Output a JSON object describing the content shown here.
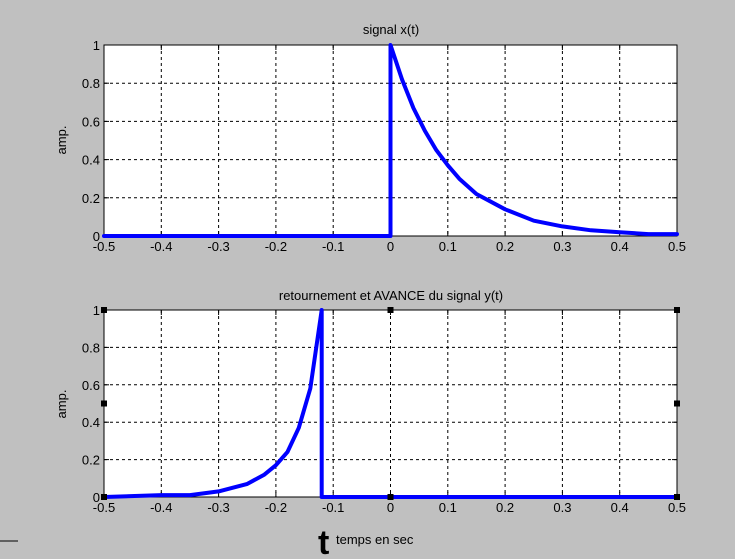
{
  "chart_data": [
    {
      "type": "line",
      "title": "signal x(t)",
      "xlabel": "",
      "ylabel": "amp.",
      "xlim": [
        -0.5,
        0.5
      ],
      "ylim": [
        0,
        1
      ],
      "xticks": [
        "-0.5",
        "-0.4",
        "-0.3",
        "-0.2",
        "-0.1",
        "0",
        "0.1",
        "0.2",
        "0.3",
        "0.4",
        "0.5"
      ],
      "yticks": [
        "0",
        "0.2",
        "0.4",
        "0.6",
        "0.8",
        "1"
      ],
      "grid": true,
      "series": [
        {
          "color": "#0000ff",
          "x": [
            -0.5,
            0.0,
            0.0,
            0.02,
            0.04,
            0.06,
            0.08,
            0.1,
            0.12,
            0.15,
            0.2,
            0.25,
            0.3,
            0.35,
            0.4,
            0.45,
            0.5
          ],
          "y": [
            0,
            0,
            1,
            0.82,
            0.67,
            0.55,
            0.45,
            0.37,
            0.3,
            0.22,
            0.14,
            0.08,
            0.05,
            0.03,
            0.02,
            0.01,
            0.01
          ]
        }
      ]
    },
    {
      "type": "line",
      "title": "retournement et AVANCE du signal y(t)",
      "xlabel": "temps en sec",
      "ylabel": "amp.",
      "xlim": [
        -0.5,
        0.5
      ],
      "ylim": [
        0,
        1
      ],
      "xticks": [
        "-0.5",
        "-0.4",
        "-0.3",
        "-0.2",
        "-0.1",
        "0",
        "0.1",
        "0.2",
        "0.3",
        "0.4",
        "0.5"
      ],
      "yticks": [
        "0",
        "0.2",
        "0.4",
        "0.6",
        "0.8",
        "1"
      ],
      "grid": true,
      "annotation": "t",
      "series": [
        {
          "color": "#0000ff",
          "x": [
            -0.5,
            -0.4,
            -0.35,
            -0.3,
            -0.25,
            -0.22,
            -0.2,
            -0.18,
            -0.16,
            -0.14,
            -0.12,
            -0.12,
            0.5
          ],
          "y": [
            0,
            0.01,
            0.01,
            0.03,
            0.07,
            0.12,
            0.17,
            0.24,
            0.37,
            0.58,
            1,
            0,
            0
          ]
        }
      ]
    }
  ]
}
